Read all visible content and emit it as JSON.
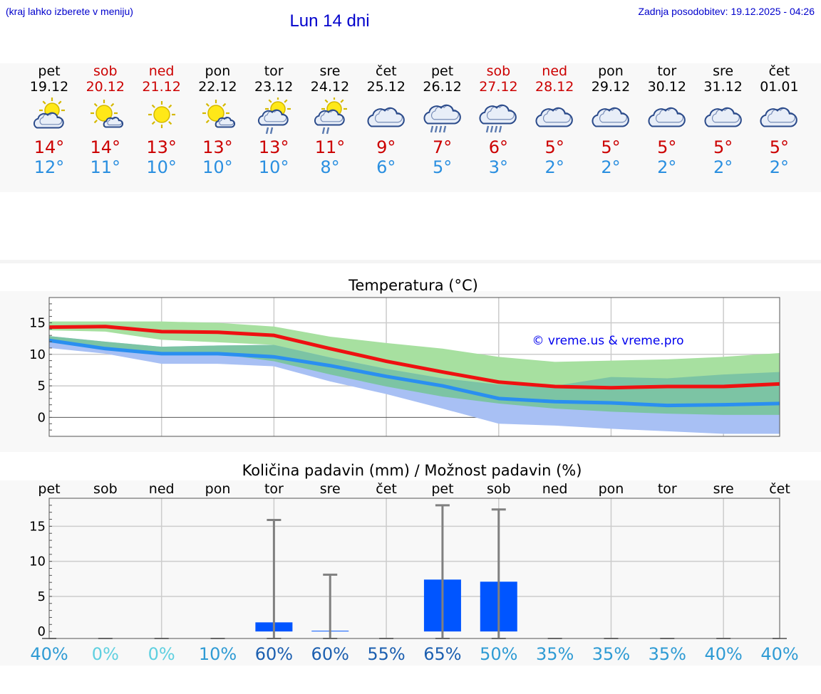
{
  "header": {
    "note": "(kraj lahko izberete v meniju)",
    "title": "Lun 14 dni",
    "update": "Zadnja posodobitev: 19.12.2025 - 04:26"
  },
  "forecast": [
    {
      "day": "pet",
      "date": "19.12",
      "weekend": false,
      "icon": "sun-cloud-icon",
      "max": "14°",
      "min": "12°"
    },
    {
      "day": "sob",
      "date": "20.12",
      "weekend": true,
      "icon": "sun-small-cloud-icon",
      "max": "14°",
      "min": "11°"
    },
    {
      "day": "ned",
      "date": "21.12",
      "weekend": true,
      "icon": "sun-icon",
      "max": "13°",
      "min": "10°"
    },
    {
      "day": "pon",
      "date": "22.12",
      "weekend": false,
      "icon": "sun-small-cloud-icon",
      "max": "13°",
      "min": "10°"
    },
    {
      "day": "tor",
      "date": "23.12",
      "weekend": false,
      "icon": "sun-cloud-rain-icon",
      "max": "13°",
      "min": "10°"
    },
    {
      "day": "sre",
      "date": "24.12",
      "weekend": false,
      "icon": "sun-cloud-rain-icon",
      "max": "11°",
      "min": "8°"
    },
    {
      "day": "čet",
      "date": "25.12",
      "weekend": false,
      "icon": "cloud-icon",
      "max": "9°",
      "min": "6°"
    },
    {
      "day": "pet",
      "date": "26.12",
      "weekend": false,
      "icon": "cloud-heavy-rain-icon",
      "max": "7°",
      "min": "5°"
    },
    {
      "day": "sob",
      "date": "27.12",
      "weekend": true,
      "icon": "cloud-heavy-rain-icon",
      "max": "6°",
      "min": "3°"
    },
    {
      "day": "ned",
      "date": "28.12",
      "weekend": true,
      "icon": "cloud-icon",
      "max": "5°",
      "min": "2°"
    },
    {
      "day": "pon",
      "date": "29.12",
      "weekend": false,
      "icon": "cloud-icon",
      "max": "5°",
      "min": "2°"
    },
    {
      "day": "tor",
      "date": "30.12",
      "weekend": false,
      "icon": "cloud-icon",
      "max": "5°",
      "min": "2°"
    },
    {
      "day": "sre",
      "date": "31.12",
      "weekend": false,
      "icon": "cloud-icon",
      "max": "5°",
      "min": "2°"
    },
    {
      "day": "čet",
      "date": "01.01",
      "weekend": false,
      "icon": "cloud-icon",
      "max": "5°",
      "min": "2°"
    }
  ],
  "chart_data": [
    {
      "type": "line",
      "title": "Temperatura (°C)",
      "watermark": "© vreme.us & vreme.pro",
      "x": [
        0,
        1,
        2,
        3,
        4,
        5,
        6,
        7,
        8,
        9,
        10,
        11,
        12,
        13
      ],
      "ylim": [
        -3,
        19
      ],
      "yticks": [
        0,
        5,
        10,
        15
      ],
      "grid": true,
      "series": [
        {
          "name": "max",
          "color": "#ee1111",
          "values": [
            14.3,
            14.4,
            13.6,
            13.5,
            13.0,
            10.9,
            8.9,
            7.2,
            5.6,
            4.9,
            4.7,
            4.9,
            4.9,
            5.3
          ]
        },
        {
          "name": "min",
          "color": "#2a8ff0",
          "values": [
            12.2,
            10.9,
            10.1,
            10.1,
            9.6,
            8.2,
            6.5,
            5.0,
            3.0,
            2.5,
            2.3,
            1.9,
            2.0,
            2.2
          ]
        }
      ],
      "bands": [
        {
          "name": "max-range",
          "color": "#a7e0a0",
          "upper": [
            15.2,
            15.2,
            15.2,
            15.0,
            14.4,
            12.8,
            11.8,
            10.9,
            9.6,
            8.8,
            9.0,
            9.2,
            9.6,
            10.2
          ],
          "lower": [
            13.8,
            13.6,
            12.3,
            11.9,
            11.5,
            8.6,
            6.5,
            4.5,
            3.9,
            3.5,
            3.4,
            3.4,
            3.4,
            3.4
          ]
        },
        {
          "name": "min-range",
          "color": "#a8c0f4",
          "upper": [
            12.9,
            12.0,
            11.2,
            11.4,
            11.5,
            9.5,
            7.7,
            6.2,
            5.2,
            5.0,
            5.0,
            4.9,
            5.1,
            5.2
          ],
          "lower": [
            11.0,
            10.1,
            8.5,
            8.5,
            8.1,
            5.7,
            3.7,
            1.4,
            -1.0,
            -1.3,
            -1.8,
            -2.2,
            -2.6,
            -2.6
          ]
        },
        {
          "name": "overlap",
          "color": "#7cc4a4",
          "upper": [
            12.9,
            12.0,
            11.2,
            11.4,
            11.5,
            9.5,
            7.7,
            6.2,
            5.2,
            5.0,
            6.4,
            6.2,
            6.8,
            7.2
          ],
          "lower": [
            12.1,
            10.9,
            10.1,
            10.1,
            8.9,
            6.8,
            4.9,
            3.3,
            2.2,
            1.4,
            0.9,
            0.6,
            0.4,
            0.4
          ]
        }
      ]
    },
    {
      "type": "bar",
      "title": "Količina padavin (mm) / Možnost padavin (%)",
      "categories": [
        "pet",
        "sob",
        "ned",
        "pon",
        "tor",
        "sre",
        "čet",
        "pet",
        "sob",
        "ned",
        "pon",
        "tor",
        "sre",
        "čet"
      ],
      "ylim": [
        -1,
        19
      ],
      "yticks": [
        0,
        5,
        10,
        15
      ],
      "grid": true,
      "values": [
        0,
        0,
        0,
        0,
        1.3,
        0.1,
        0,
        7.4,
        7.1,
        0,
        0,
        0,
        0,
        0
      ],
      "errors_upper": [
        0,
        0,
        0,
        0,
        15.9,
        8.1,
        0,
        18.0,
        17.4,
        0,
        0,
        0,
        0,
        0
      ],
      "probability": [
        "40%",
        "0%",
        "0%",
        "10%",
        "60%",
        "60%",
        "55%",
        "65%",
        "50%",
        "35%",
        "35%",
        "35%",
        "40%",
        "40%"
      ],
      "probability_colors": [
        "#2f9bd4",
        "#5fd0e0",
        "#5fd0e0",
        "#2f9bd4",
        "#1c5fb0",
        "#1c5fb0",
        "#1c5fb0",
        "#1c5fb0",
        "#2f9bd4",
        "#2f9bd4",
        "#2f9bd4",
        "#2f9bd4",
        "#2f9bd4",
        "#2f9bd4"
      ],
      "bar_color": "#0055ff",
      "error_color": "#808080"
    }
  ]
}
